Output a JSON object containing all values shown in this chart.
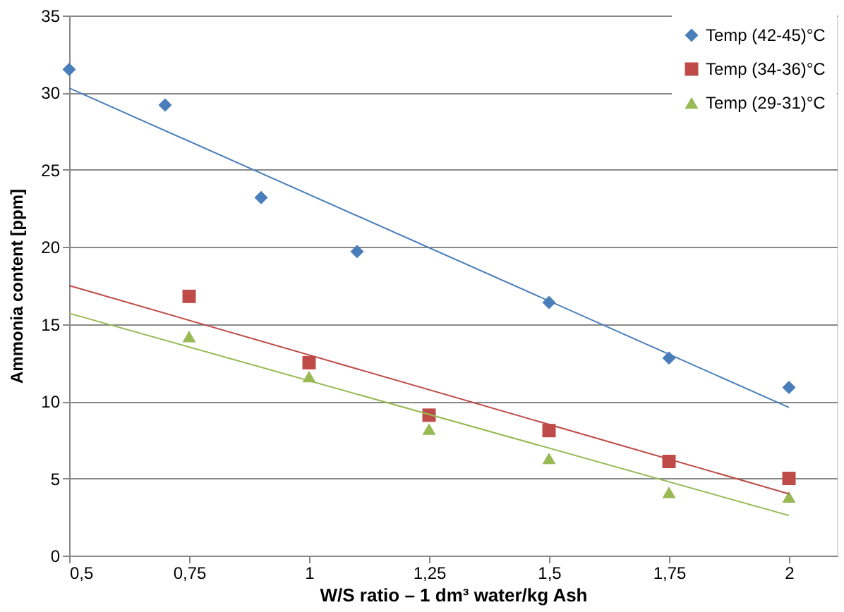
{
  "chart_data": {
    "type": "scatter",
    "xlabel": "W/S ratio – 1 dm³ water/kg Ash",
    "ylabel": "Ammonia content [ppm]",
    "xlim": [
      0.5,
      2.1
    ],
    "ylim": [
      0,
      35
    ],
    "xticks": [
      {
        "value": 0.5,
        "label": "0,5"
      },
      {
        "value": 0.75,
        "label": "0,75"
      },
      1,
      {
        "value": 1.25,
        "label": "1,25"
      },
      {
        "value": 1.5,
        "label": "1,5"
      },
      {
        "value": 1.75,
        "label": "1,75"
      },
      2
    ],
    "yticks": [
      0,
      5,
      10,
      15,
      20,
      25,
      30,
      35
    ],
    "grid": "y",
    "legend": "top right",
    "series": [
      {
        "name": "Temp (42-45)°C",
        "color": "#4a7ebb",
        "marker": "diamond",
        "x": [
          0.5,
          0.7,
          0.9,
          1.1,
          1.5,
          1.75,
          2
        ],
        "values": [
          31.5,
          29.2,
          23.2,
          19.7,
          16.4,
          12.8,
          10.9
        ]
      },
      {
        "name": "Temp (34-36)°C",
        "color": "#be4b48",
        "marker": "square",
        "x": [
          0.75,
          1,
          1.25,
          1.5,
          1.75,
          2
        ],
        "values": [
          16.8,
          12.5,
          9.1,
          8.1,
          6.1,
          5.0
        ]
      },
      {
        "name": "Temp (29-31)°C",
        "color": "#98b954",
        "marker": "triangle",
        "x": [
          0.75,
          1,
          1.25,
          1.5,
          1.75,
          2
        ],
        "values": [
          14.2,
          11.6,
          8.2,
          6.3,
          4.1,
          3.8
        ]
      },
      {
        "type": "line",
        "color": "#4a7ebb",
        "x": [
          0.5,
          2
        ],
        "values": [
          30.3,
          9.6
        ]
      },
      {
        "type": "line",
        "color": "#be4b48",
        "x": [
          0.5,
          2
        ],
        "values": [
          17.5,
          4.0
        ]
      },
      {
        "type": "line",
        "color": "#98b954",
        "x": [
          0.5,
          2
        ],
        "values": [
          15.7,
          2.6
        ]
      }
    ]
  }
}
